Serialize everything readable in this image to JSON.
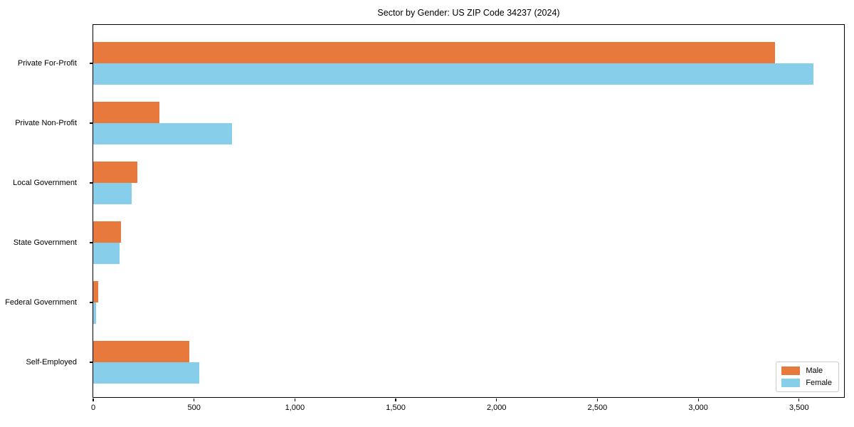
{
  "window": {
    "title": "Sector by Gender: US ZIP Code 34237 (2024)"
  },
  "chart_data": {
    "type": "bar",
    "orientation": "horizontal",
    "title": "Sector by Gender: US ZIP Code 34237 (2024)",
    "categories": [
      "Private For-Profit",
      "Private Non-Profit",
      "Local Government",
      "State Government",
      "Federal Government",
      "Self-Employed"
    ],
    "series": [
      {
        "name": "Male",
        "color": "#e8793c",
        "values": [
          3380,
          327,
          220,
          139,
          25,
          476
        ]
      },
      {
        "name": "Female",
        "color": "#87ceeb",
        "values": [
          3570,
          689,
          190,
          130,
          13,
          526
        ]
      }
    ],
    "xlabel": "",
    "ylabel": "",
    "xlim": [
      0,
      3730
    ],
    "xticks": {
      "values": [
        0,
        500,
        1000,
        1500,
        2000,
        2500,
        3000,
        3500
      ],
      "labels": [
        "0",
        "500",
        "1,000",
        "1,500",
        "2,000",
        "2,500",
        "3,000",
        "3,500"
      ]
    },
    "grid": false,
    "legend": {
      "position": "lower-right",
      "entries": [
        "Male",
        "Female"
      ]
    },
    "frame": {
      "color": "#000000"
    },
    "background": "#ffffff"
  }
}
